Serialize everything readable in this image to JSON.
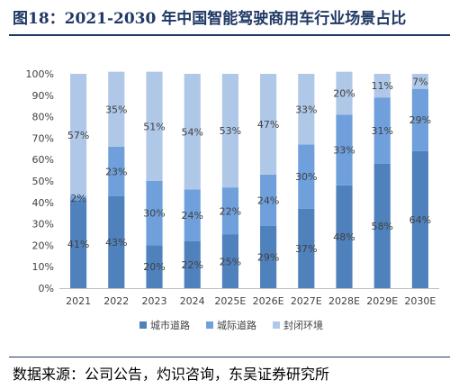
{
  "title": "图18：2021-2030 年中国智能驾驶商用车行业场景占比",
  "source": "数据来源：公司公告，灼识咨询，东吴证券研究所",
  "chart_data": {
    "type": "bar",
    "stacked": true,
    "categories": [
      "2021",
      "2022",
      "2023",
      "2024",
      "2025E",
      "2026E",
      "2027E",
      "2028E",
      "2029E",
      "2030E"
    ],
    "series": [
      {
        "name": "城市道路",
        "color": "#4f81bd",
        "values": [
          41,
          43,
          20,
          22,
          25,
          29,
          37,
          48,
          58,
          64
        ]
      },
      {
        "name": "城际道路",
        "color": "#6fa0dc",
        "values": [
          2,
          23,
          30,
          24,
          22,
          24,
          30,
          33,
          31,
          29
        ]
      },
      {
        "name": "封闭环境",
        "color": "#b0c8e8",
        "values": [
          57,
          35,
          51,
          54,
          53,
          47,
          33,
          20,
          11,
          7
        ]
      }
    ],
    "yticks": [
      "0%",
      "10%",
      "20%",
      "30%",
      "40%",
      "50%",
      "60%",
      "70%",
      "80%",
      "90%",
      "100%"
    ],
    "ylim": [
      0,
      100
    ],
    "legend_position": "bottom"
  }
}
